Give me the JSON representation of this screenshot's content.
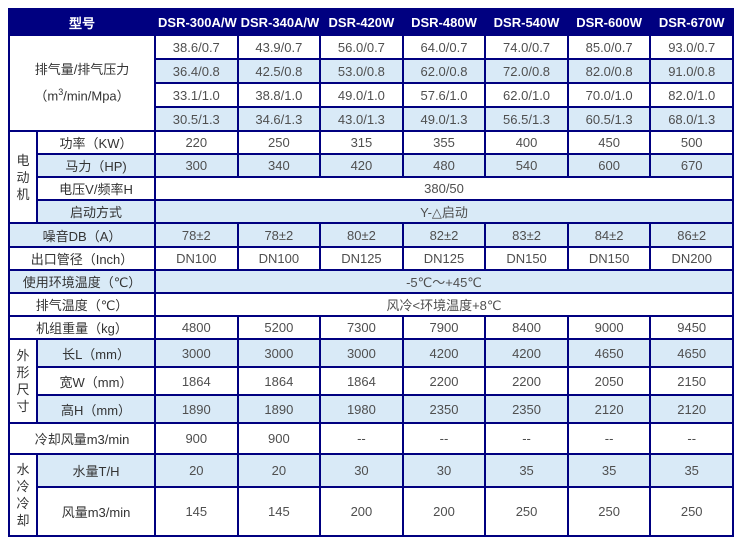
{
  "table": {
    "colors": {
      "header_bg": "#000080",
      "border": "#000080",
      "row_bg": "#ffffff",
      "row_alt_bg": "#d9eaf7",
      "header_text": "#ffffff",
      "label_text": "#333333",
      "value_text": "#4f4f4f"
    },
    "header": {
      "model_label": "型号",
      "models": [
        "DSR-300A/W",
        "DSR-340A/W",
        "DSR-420W",
        "DSR-480W",
        "DSR-540W",
        "DSR-600W",
        "DSR-670W"
      ]
    },
    "rows": [
      {
        "bg": "white",
        "cells": [
          {
            "kind": "suplabel",
            "name": "row-label-displacement",
            "colspan": 2,
            "rowspan": 4,
            "line1": "排气量/排气压力",
            "line2_pre": "（m",
            "line2_sup": "3",
            "line2_post": "/min/Mpa）"
          },
          {
            "kind": "value",
            "text": "38.6/0.7"
          },
          {
            "kind": "value",
            "text": "43.9/0.7"
          },
          {
            "kind": "value",
            "text": "56.0/0.7"
          },
          {
            "kind": "value",
            "text": "64.0/0.7"
          },
          {
            "kind": "value",
            "text": "74.0/0.7"
          },
          {
            "kind": "value",
            "text": "85.0/0.7"
          },
          {
            "kind": "value",
            "text": "93.0/0.7"
          }
        ]
      },
      {
        "bg": "blue",
        "cells": [
          {
            "kind": "value",
            "text": "36.4/0.8"
          },
          {
            "kind": "value",
            "text": "42.5/0.8"
          },
          {
            "kind": "value",
            "text": "53.0/0.8"
          },
          {
            "kind": "value",
            "text": "62.0/0.8"
          },
          {
            "kind": "value",
            "text": "72.0/0.8"
          },
          {
            "kind": "value",
            "text": "82.0/0.8"
          },
          {
            "kind": "value",
            "text": "91.0/0.8"
          }
        ]
      },
      {
        "bg": "white",
        "cells": [
          {
            "kind": "value",
            "text": "33.1/1.0"
          },
          {
            "kind": "value",
            "text": "38.8/1.0"
          },
          {
            "kind": "value",
            "text": "49.0/1.0"
          },
          {
            "kind": "value",
            "text": "57.6/1.0"
          },
          {
            "kind": "value",
            "text": "62.0/1.0"
          },
          {
            "kind": "value",
            "text": "70.0/1.0"
          },
          {
            "kind": "value",
            "text": "82.0/1.0"
          }
        ]
      },
      {
        "bg": "blue",
        "cells": [
          {
            "kind": "value",
            "text": "30.5/1.3"
          },
          {
            "kind": "value",
            "text": "34.6/1.3"
          },
          {
            "kind": "value",
            "text": "43.0/1.3"
          },
          {
            "kind": "value",
            "text": "49.0/1.3"
          },
          {
            "kind": "value",
            "text": "56.5/1.3"
          },
          {
            "kind": "value",
            "text": "60.5/1.3"
          },
          {
            "kind": "value",
            "text": "68.0/1.3"
          }
        ]
      },
      {
        "bg": "white",
        "cells": [
          {
            "kind": "vlabel",
            "name": "section-label-motor",
            "rowspan": 4,
            "text": "电动机"
          },
          {
            "kind": "label",
            "name": "row-label-power",
            "text": "功率（KW）"
          },
          {
            "kind": "value",
            "text": "220"
          },
          {
            "kind": "value",
            "text": "250"
          },
          {
            "kind": "value",
            "text": "315"
          },
          {
            "kind": "value",
            "text": "355"
          },
          {
            "kind": "value",
            "text": "400"
          },
          {
            "kind": "value",
            "text": "450"
          },
          {
            "kind": "value",
            "text": "500"
          }
        ]
      },
      {
        "bg": "blue",
        "cells": [
          {
            "kind": "label",
            "name": "row-label-horsepower",
            "text": "马力（HP)"
          },
          {
            "kind": "value",
            "text": "300"
          },
          {
            "kind": "value",
            "text": "340"
          },
          {
            "kind": "value",
            "text": "420"
          },
          {
            "kind": "value",
            "text": "480"
          },
          {
            "kind": "value",
            "text": "540"
          },
          {
            "kind": "value",
            "text": "600"
          },
          {
            "kind": "value",
            "text": "670"
          }
        ]
      },
      {
        "bg": "white",
        "cells": [
          {
            "kind": "label",
            "name": "row-label-voltage",
            "text": "电压V/频率H"
          },
          {
            "kind": "value",
            "name": "merged-value-voltage",
            "colspan": 7,
            "text": "380/50"
          }
        ]
      },
      {
        "bg": "blue",
        "cells": [
          {
            "kind": "label",
            "name": "row-label-start-mode",
            "text": "启动方式"
          },
          {
            "kind": "value",
            "name": "merged-value-start-mode",
            "colspan": 7,
            "text": "Y-△启动"
          }
        ]
      },
      {
        "bg": "blue",
        "cells": [
          {
            "kind": "label",
            "name": "row-label-noise",
            "colspan": 2,
            "text": "噪音DB（A）"
          },
          {
            "kind": "value",
            "text": "78±2"
          },
          {
            "kind": "value",
            "text": "78±2"
          },
          {
            "kind": "value",
            "text": "80±2"
          },
          {
            "kind": "value",
            "text": "82±2"
          },
          {
            "kind": "value",
            "text": "83±2"
          },
          {
            "kind": "value",
            "text": "84±2"
          },
          {
            "kind": "value",
            "text": "86±2"
          }
        ]
      },
      {
        "bg": "white",
        "cells": [
          {
            "kind": "label",
            "name": "row-label-outlet-diameter",
            "colspan": 2,
            "text": "出口管径（Inch）"
          },
          {
            "kind": "value",
            "text": "DN100"
          },
          {
            "kind": "value",
            "text": "DN100"
          },
          {
            "kind": "value",
            "text": "DN125"
          },
          {
            "kind": "value",
            "text": "DN125"
          },
          {
            "kind": "value",
            "text": "DN150"
          },
          {
            "kind": "value",
            "text": "DN150"
          },
          {
            "kind": "value",
            "text": "DN200"
          }
        ]
      },
      {
        "bg": "blue",
        "cells": [
          {
            "kind": "label",
            "name": "row-label-ambient-temp",
            "colspan": 2,
            "text": "使用环境温度（℃）"
          },
          {
            "kind": "value",
            "name": "merged-value-ambient-temp",
            "colspan": 7,
            "text": "-5℃～+45℃"
          }
        ]
      },
      {
        "bg": "white",
        "cells": [
          {
            "kind": "label",
            "name": "row-label-exhaust-temp",
            "colspan": 2,
            "text": "排气温度（℃）"
          },
          {
            "kind": "value",
            "name": "merged-value-exhaust-temp",
            "colspan": 7,
            "text": "风冷<环境温度+8℃"
          }
        ]
      },
      {
        "bg": "white",
        "cells": [
          {
            "kind": "label",
            "name": "row-label-unit-weight",
            "colspan": 2,
            "text": "机组重量（kg）"
          },
          {
            "kind": "value",
            "text": "4800"
          },
          {
            "kind": "value",
            "text": "5200"
          },
          {
            "kind": "value",
            "text": "7300"
          },
          {
            "kind": "value",
            "text": "7900"
          },
          {
            "kind": "value",
            "text": "8400"
          },
          {
            "kind": "value",
            "text": "9000"
          },
          {
            "kind": "value",
            "text": "9450"
          }
        ]
      },
      {
        "bg": "blue",
        "cells": [
          {
            "kind": "vlabel",
            "name": "section-label-dimensions",
            "rowspan": 3,
            "text": "外形尺寸"
          },
          {
            "kind": "label",
            "name": "row-label-length",
            "text": "长L（mm）"
          },
          {
            "kind": "value",
            "text": "3000"
          },
          {
            "kind": "value",
            "text": "3000"
          },
          {
            "kind": "value",
            "text": "3000"
          },
          {
            "kind": "value",
            "text": "4200"
          },
          {
            "kind": "value",
            "text": "4200"
          },
          {
            "kind": "value",
            "text": "4650"
          },
          {
            "kind": "value",
            "text": "4650"
          }
        ]
      },
      {
        "bg": "white",
        "cells": [
          {
            "kind": "label",
            "name": "row-label-width",
            "text": "宽W（mm）"
          },
          {
            "kind": "value",
            "text": "1864"
          },
          {
            "kind": "value",
            "text": "1864"
          },
          {
            "kind": "value",
            "text": "1864"
          },
          {
            "kind": "value",
            "text": "2200"
          },
          {
            "kind": "value",
            "text": "2200"
          },
          {
            "kind": "value",
            "text": "2050"
          },
          {
            "kind": "value",
            "text": "2150"
          }
        ]
      },
      {
        "bg": "blue",
        "cells": [
          {
            "kind": "label",
            "name": "row-label-height",
            "text": "高H（mm）"
          },
          {
            "kind": "value",
            "text": "1890"
          },
          {
            "kind": "value",
            "text": "1890"
          },
          {
            "kind": "value",
            "text": "1980"
          },
          {
            "kind": "value",
            "text": "2350"
          },
          {
            "kind": "value",
            "text": "2350"
          },
          {
            "kind": "value",
            "text": "2120"
          },
          {
            "kind": "value",
            "text": "2120"
          }
        ]
      },
      {
        "bg": "white",
        "cells": [
          {
            "kind": "label",
            "name": "row-label-cooling-airflow",
            "colspan": 2,
            "text": "冷却风量m3/min"
          },
          {
            "kind": "value",
            "text": "900"
          },
          {
            "kind": "value",
            "text": "900"
          },
          {
            "kind": "value",
            "text": "--"
          },
          {
            "kind": "value",
            "text": "--"
          },
          {
            "kind": "value",
            "text": "--"
          },
          {
            "kind": "value",
            "text": "--"
          },
          {
            "kind": "value",
            "text": "--"
          }
        ]
      },
      {
        "bg": "blue",
        "cells": [
          {
            "kind": "vlabel",
            "name": "section-label-water-cooling",
            "rowspan": 2,
            "text": "水冷冷却"
          },
          {
            "kind": "label",
            "name": "row-label-water-volume",
            "text": "水量T/H"
          },
          {
            "kind": "value",
            "text": "20"
          },
          {
            "kind": "value",
            "text": "20"
          },
          {
            "kind": "value",
            "text": "30"
          },
          {
            "kind": "value",
            "text": "30"
          },
          {
            "kind": "value",
            "text": "35"
          },
          {
            "kind": "value",
            "text": "35"
          },
          {
            "kind": "value",
            "text": "35"
          }
        ]
      },
      {
        "bg": "white",
        "cells": [
          {
            "kind": "label",
            "name": "row-label-air-volume",
            "text": "风量m3/min"
          },
          {
            "kind": "value",
            "text": "145"
          },
          {
            "kind": "value",
            "text": "145"
          },
          {
            "kind": "value",
            "text": "200"
          },
          {
            "kind": "value",
            "text": "200"
          },
          {
            "kind": "value",
            "text": "250"
          },
          {
            "kind": "value",
            "text": "250"
          },
          {
            "kind": "value",
            "text": "250"
          }
        ]
      }
    ]
  }
}
